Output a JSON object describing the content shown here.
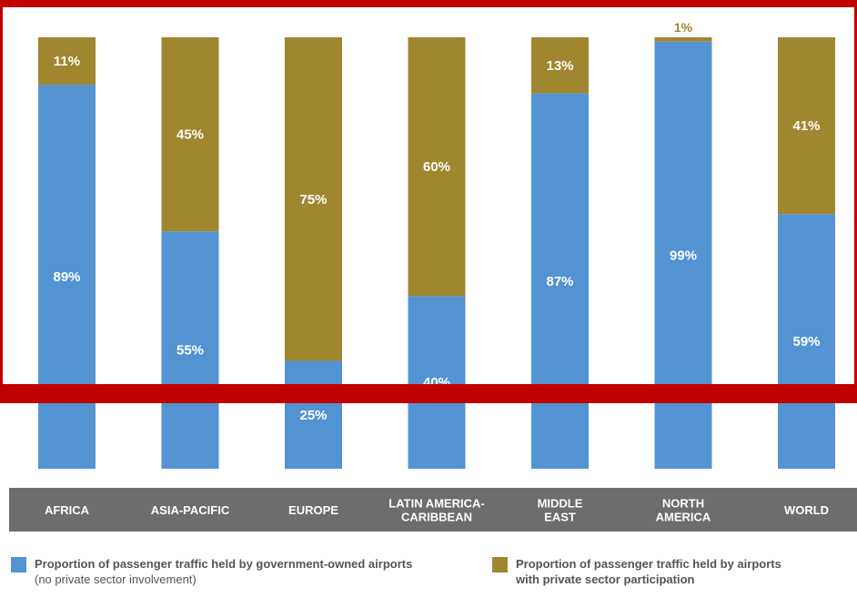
{
  "chart_data": {
    "type": "bar",
    "stacked": true,
    "percent_stacked": true,
    "categories": [
      [
        "AFRICA"
      ],
      [
        "ASIA-PACIFIC"
      ],
      [
        "EUROPE"
      ],
      [
        "LATIN AMERICA-",
        "CARIBBEAN"
      ],
      [
        "MIDDLE",
        "EAST"
      ],
      [
        "NORTH",
        "AMERICA"
      ],
      [
        "WORLD"
      ]
    ],
    "series": [
      {
        "name": "Proportion of passenger traffic held by government-owned airports",
        "name_note": "(no private sector involvement)",
        "color": "#5393d2",
        "values": [
          89,
          55,
          25,
          40,
          87,
          99,
          59
        ],
        "labels": [
          "89%",
          "55%",
          "25%",
          "40%",
          "87%",
          "99%",
          "59%"
        ]
      },
      {
        "name": "Proportion of passenger traffic held by airports",
        "name_note": "with private sector participation",
        "color": "#a0862f",
        "values": [
          11,
          45,
          75,
          60,
          13,
          1,
          41
        ],
        "labels": [
          "11%",
          "45%",
          "75%",
          "60%",
          "13%",
          "1%",
          "41%"
        ]
      }
    ],
    "ylim": [
      0,
      100
    ],
    "grid": false,
    "legend_position": "bottom",
    "category_band_color": "#6d6d6d"
  },
  "highlight": {
    "color": "#c00000"
  }
}
